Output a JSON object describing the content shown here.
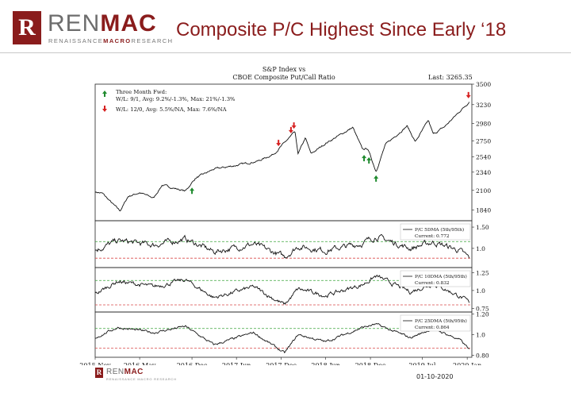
{
  "header": {
    "logo_glyph": "R",
    "brand_main": "REN",
    "brand_accent": "MAC",
    "tag_a": "RENAISSANCE",
    "tag_b": "MACRO",
    "tag_c": "RESEARCH",
    "title": "Composite P/C Highest Since Early ‘18"
  },
  "footer": {
    "logo_glyph": "R",
    "brand_main": "REN",
    "brand_accent": "MAC",
    "tag": "RENAISSANCE MACRO RESEARCH",
    "date": "01-10-2020"
  },
  "chart_data": {
    "type": "line",
    "title_line1": "S&P Index vs",
    "title_line2": "CBOE Composite Put/Call Ratio",
    "last_label": "Last: 3265.35",
    "x_axis": {
      "ticks": [
        "2015-Nov",
        "2016-May",
        "2016-Dec",
        "2017-Jun",
        "2017-Dec",
        "2018-Jun",
        "2018-Dec",
        "2019-Jul",
        "2020-Jan"
      ]
    },
    "legend": {
      "heading": "Three Month Fwd:",
      "green_text": "W/L: 9/1, Avg: 9.2%/-1.3%, Max: 21%/-1.3%",
      "red_text": "W/L: 12/0, Avg: 5.5%/NA, Max: 7.6%/NA",
      "placement": "top-left",
      "green_color": "#1f8a2e",
      "red_color": "#d62020"
    },
    "panels": [
      {
        "name": "S&P Index",
        "ylim": [
          1700,
          3500
        ],
        "yticks": [
          1840,
          2100,
          2340,
          2540,
          2750,
          2980,
          3230,
          3500
        ],
        "x": [
          "2015-11-01",
          "2015-12-01",
          "2016-01-15",
          "2016-02-11",
          "2016-03-15",
          "2016-05-01",
          "2016-06-27",
          "2016-08-01",
          "2016-11-04",
          "2016-12-15",
          "2017-03-01",
          "2017-06-01",
          "2017-09-01",
          "2017-11-01",
          "2018-01-26",
          "2018-02-08",
          "2018-03-10",
          "2018-04-02",
          "2018-06-01",
          "2018-09-20",
          "2018-10-29",
          "2018-11-20",
          "2018-12-24",
          "2019-01-31",
          "2019-04-30",
          "2019-06-03",
          "2019-07-26",
          "2019-08-15",
          "2019-10-01",
          "2019-12-01",
          "2020-01-09"
        ],
        "y": [
          2080,
          2060,
          1910,
          1830,
          2020,
          2070,
          2000,
          2170,
          2090,
          2260,
          2380,
          2430,
          2490,
          2580,
          2870,
          2580,
          2790,
          2580,
          2720,
          2930,
          2640,
          2650,
          2350,
          2700,
          2950,
          2740,
          3020,
          2840,
          2940,
          3140,
          3265
        ]
      },
      {
        "name": "P/C 5DMA (5th/95th)",
        "current": "Current: 0.772",
        "ylim": [
          0.55,
          1.65
        ],
        "yticks": [
          1.0,
          1.5
        ],
        "upper_band": 1.16,
        "lower_band": 0.77,
        "x": [
          "2015-11-01",
          "2016-02-01",
          "2016-06-27",
          "2016-11-04",
          "2017-03-01",
          "2017-08-10",
          "2017-12-15",
          "2018-02-08",
          "2018-06-01",
          "2018-10-29",
          "2018-12-24",
          "2019-05-13",
          "2019-08-15",
          "2019-12-01",
          "2020-01-09"
        ],
        "y": [
          0.95,
          1.18,
          1.08,
          1.22,
          0.92,
          1.1,
          0.8,
          1.05,
          0.95,
          1.12,
          1.28,
          1.0,
          1.15,
          0.95,
          0.77
        ]
      },
      {
        "name": "P/C 10DMA (5th/95th)",
        "current": "Current: 0.832",
        "ylim": [
          0.7,
          1.32
        ],
        "yticks": [
          0.75,
          1.0,
          1.25
        ],
        "upper_band": 1.14,
        "lower_band": 0.8,
        "x": [
          "2015-11-01",
          "2016-02-01",
          "2016-06-27",
          "2016-11-04",
          "2017-03-01",
          "2017-08-10",
          "2017-12-15",
          "2018-02-08",
          "2018-06-01",
          "2018-10-29",
          "2018-12-24",
          "2019-05-13",
          "2019-08-15",
          "2019-12-01",
          "2020-01-09"
        ],
        "y": [
          0.95,
          1.13,
          1.05,
          1.15,
          0.9,
          1.05,
          0.8,
          1.02,
          0.93,
          1.08,
          1.2,
          0.98,
          1.1,
          0.92,
          0.83
        ]
      },
      {
        "name": "P/C 25DMA (5th/95th)",
        "current": "Current: 0.864",
        "ylim": [
          0.78,
          1.22
        ],
        "yticks": [
          0.8,
          1.0,
          1.2
        ],
        "upper_band": 1.06,
        "lower_band": 0.87,
        "x": [
          "2015-11-01",
          "2016-02-01",
          "2016-06-27",
          "2016-11-04",
          "2017-03-01",
          "2017-08-10",
          "2017-12-15",
          "2018-02-08",
          "2018-06-01",
          "2018-10-29",
          "2018-12-24",
          "2019-05-13",
          "2019-08-15",
          "2019-12-01",
          "2020-01-09"
        ],
        "y": [
          0.97,
          1.07,
          1.02,
          1.08,
          0.9,
          1.02,
          0.82,
          1.0,
          0.93,
          1.07,
          1.1,
          0.97,
          1.06,
          0.95,
          0.86
        ]
      }
    ],
    "buy_signals": [
      {
        "date": "2016-12-01",
        "value": 2200
      },
      {
        "date": "2018-11-05",
        "value": 2630
      },
      {
        "date": "2018-11-25",
        "value": 2600
      },
      {
        "date": "2018-12-24",
        "value": 2360
      }
    ],
    "sell_signals": [
      {
        "date": "2017-11-20",
        "value": 2620
      },
      {
        "date": "2018-01-10",
        "value": 2790
      },
      {
        "date": "2018-01-22",
        "value": 2850
      },
      {
        "date": "2020-01-06",
        "value": 3250
      }
    ]
  }
}
